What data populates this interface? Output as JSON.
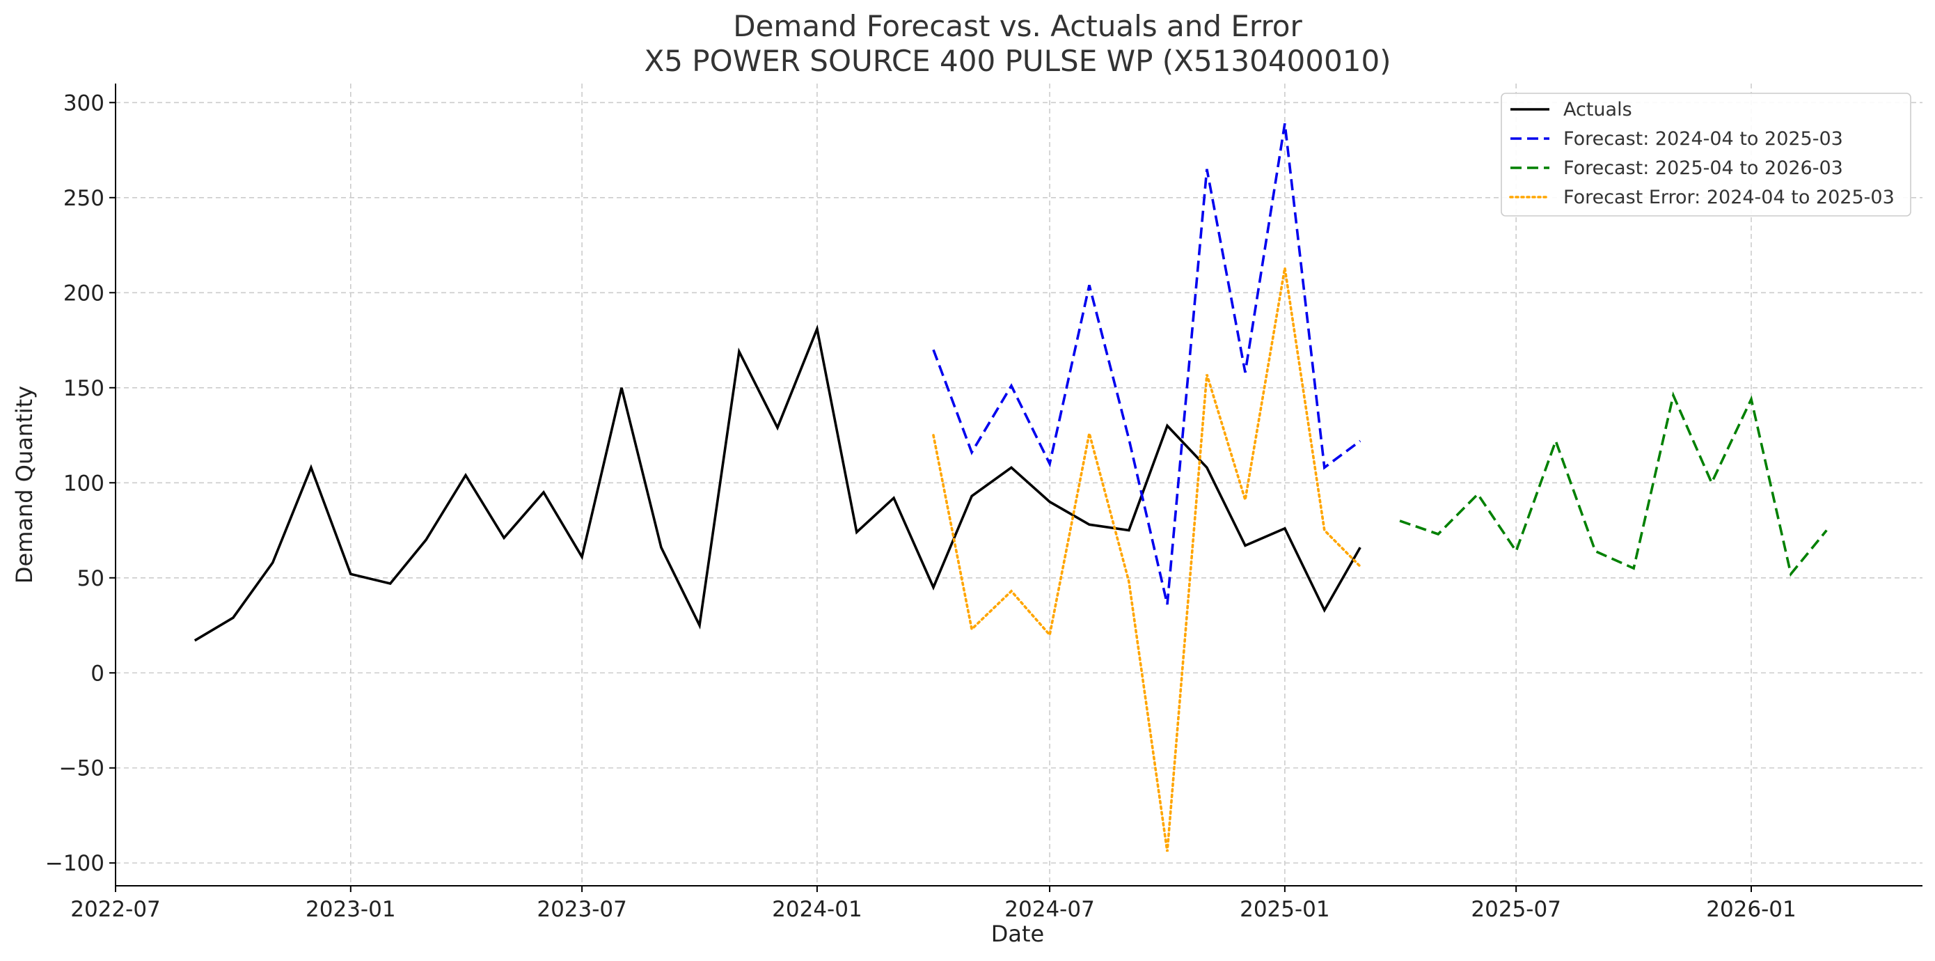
{
  "chart_data": {
    "type": "line",
    "title": "Demand Forecast vs. Actuals and Error",
    "subtitle": "X5 POWER SOURCE 400 PULSE WP (X5130400010)",
    "xlabel": "Date",
    "ylabel": "Demand Quantity",
    "xlim": [
      "2022-07-01",
      "2026-05-15"
    ],
    "ylim": [
      -112,
      310
    ],
    "x_ticks": [
      "2022-07",
      "2023-01",
      "2023-07",
      "2024-01",
      "2024-07",
      "2025-01",
      "2025-07",
      "2026-01"
    ],
    "y_ticks": [
      300,
      250,
      200,
      150,
      100,
      50,
      0,
      -50,
      -100
    ],
    "grid": true,
    "legend_position": "top-right",
    "series": [
      {
        "name": "Actuals",
        "color": "#000000",
        "style": "solid",
        "x": [
          "2022-09-01",
          "2022-10-01",
          "2022-11-01",
          "2022-12-01",
          "2023-01-01",
          "2023-02-01",
          "2023-03-01",
          "2023-04-01",
          "2023-05-01",
          "2023-06-01",
          "2023-07-01",
          "2023-08-01",
          "2023-09-01",
          "2023-10-01",
          "2023-11-01",
          "2023-12-01",
          "2024-01-01",
          "2024-02-01",
          "2024-03-01",
          "2024-04-01",
          "2024-05-01",
          "2024-06-01",
          "2024-07-01",
          "2024-08-01",
          "2024-09-01",
          "2024-10-01",
          "2024-11-01",
          "2024-12-01",
          "2025-01-01",
          "2025-02-01",
          "2025-03-01"
        ],
        "values": [
          17,
          29,
          58,
          108,
          52,
          47,
          70,
          104,
          71,
          95,
          61,
          150,
          66,
          25,
          169,
          129,
          181,
          74,
          92,
          45,
          93,
          108,
          90,
          78,
          75,
          130,
          108,
          67,
          76,
          33,
          66
        ]
      },
      {
        "name": "Forecast: 2024-04 to 2025-03",
        "color": "#0000ee",
        "style": "dashed",
        "x": [
          "2024-04-01",
          "2024-05-01",
          "2024-06-01",
          "2024-07-01",
          "2024-08-01",
          "2024-09-01",
          "2024-10-01",
          "2024-11-01",
          "2024-12-01",
          "2025-01-01",
          "2025-02-01",
          "2025-03-01"
        ],
        "values": [
          170,
          116,
          151,
          110,
          204,
          123,
          36,
          265,
          158,
          289,
          108,
          122
        ]
      },
      {
        "name": "Forecast: 2025-04 to 2026-03",
        "color": "#008000",
        "style": "dashed",
        "x": [
          "2025-04-01",
          "2025-05-01",
          "2025-06-01",
          "2025-07-01",
          "2025-08-01",
          "2025-09-01",
          "2025-10-01",
          "2025-11-01",
          "2025-12-01",
          "2026-01-01",
          "2026-02-01",
          "2026-03-01"
        ],
        "values": [
          80,
          73,
          94,
          64,
          122,
          64,
          55,
          146,
          100,
          144,
          52,
          75
        ]
      },
      {
        "name": "Forecast Error: 2024-04 to 2025-03",
        "color": "#ffa500",
        "style": "dotted",
        "x": [
          "2024-04-01",
          "2024-05-01",
          "2024-06-01",
          "2024-07-01",
          "2024-08-01",
          "2024-09-01",
          "2024-10-01",
          "2024-11-01",
          "2024-12-01",
          "2025-01-01",
          "2025-02-01",
          "2025-03-01"
        ],
        "values": [
          125,
          23,
          43,
          20,
          126,
          48,
          -94,
          157,
          91,
          213,
          75,
          56
        ]
      }
    ]
  }
}
